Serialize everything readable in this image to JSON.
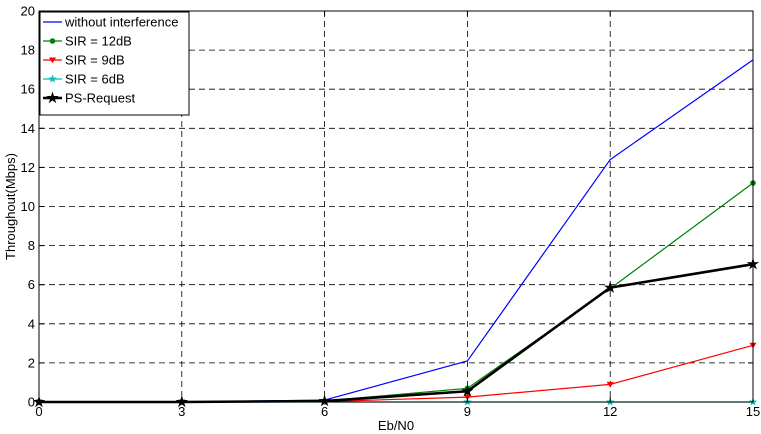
{
  "chart_data": {
    "type": "line",
    "xlabel": "Eb/N0",
    "ylabel": "Throughout(Mbps)",
    "xlim": [
      0,
      15
    ],
    "ylim": [
      0,
      20
    ],
    "x_ticks": [
      0,
      3,
      6,
      9,
      12,
      15
    ],
    "y_ticks": [
      0,
      2,
      4,
      6,
      8,
      10,
      12,
      14,
      16,
      18,
      20
    ],
    "grid": true,
    "legend_position": "top-left",
    "x": [
      0,
      3,
      6,
      9,
      12,
      15
    ],
    "series": [
      {
        "name": "without interference",
        "color": "#0000ff",
        "marker": "none",
        "width": 1.2,
        "values": [
          0,
          0,
          0.1,
          2.1,
          12.4,
          17.5
        ]
      },
      {
        "name": "SIR = 12dB",
        "color": "#008000",
        "marker": "dot",
        "width": 1.2,
        "values": [
          0,
          0,
          0.05,
          0.7,
          5.8,
          11.2
        ]
      },
      {
        "name": "SIR = 9dB",
        "color": "#ff0000",
        "marker": "tri",
        "width": 1.2,
        "values": [
          0,
          0,
          0.02,
          0.25,
          0.9,
          2.9
        ]
      },
      {
        "name": "SIR = 6dB",
        "color": "#00bfbf",
        "marker": "star",
        "width": 1.2,
        "values": [
          0,
          0,
          0,
          0,
          0,
          0
        ]
      },
      {
        "name": "PS-Request",
        "color": "#000000",
        "marker": "star",
        "width": 2.6,
        "values": [
          0,
          0,
          0.05,
          0.55,
          5.85,
          7.05
        ]
      }
    ]
  }
}
